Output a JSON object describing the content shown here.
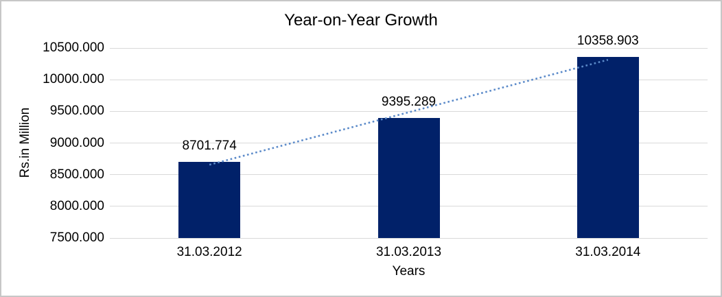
{
  "window": {
    "background": "#FFFFFF",
    "border_color": "#C7C7C7"
  },
  "chart_data": {
    "type": "bar",
    "title": "Year-on-Year Growth",
    "categories": [
      "31.03.2012",
      "31.03.2013",
      "31.03.2014"
    ],
    "values": [
      8701.774,
      9395.289,
      10358.903
    ],
    "data_labels": [
      "8701.774",
      "9395.289",
      "10358.903"
    ],
    "xlabel": "Years",
    "ylabel": "Rs.in Million",
    "ylim": [
      7500,
      10500
    ],
    "ytick_step": 500,
    "ytick_labels": [
      "7500.000",
      "8000.000",
      "8500.000",
      "9000.000",
      "9500.000",
      "10000.000",
      "10500.000"
    ],
    "grid": true,
    "legend": "none",
    "trendline": {
      "type": "linear",
      "style": "dotted"
    },
    "colors": {
      "bar": "#012169",
      "trendline": "#5B8AC9",
      "gridline": "#D9D9D9",
      "text": "#000000"
    }
  }
}
